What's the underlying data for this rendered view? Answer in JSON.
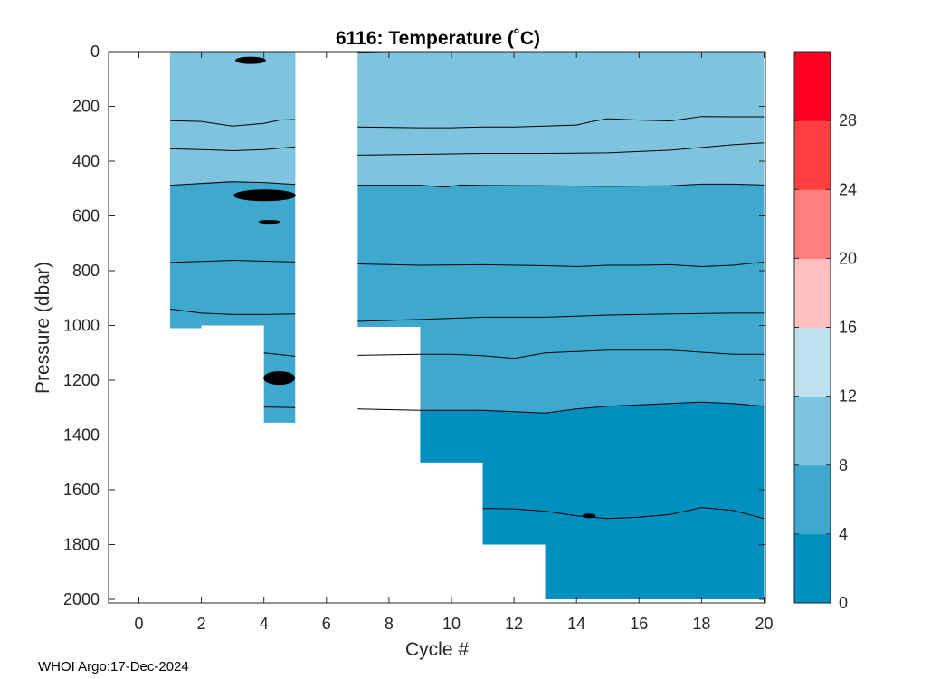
{
  "chart_data": {
    "type": "filled-contour",
    "title": "6116:  Temperature (˚C)",
    "xlabel": "Cycle #",
    "ylabel": "Pressure (dbar)",
    "xlim": [
      -1,
      20
    ],
    "ylim": [
      0,
      2000
    ],
    "y_reversed": true,
    "x_ticks": [
      0,
      2,
      4,
      6,
      8,
      10,
      12,
      14,
      16,
      18,
      20
    ],
    "y_ticks": [
      0,
      200,
      400,
      600,
      800,
      1000,
      1200,
      1400,
      1600,
      1800,
      2000
    ],
    "grid": false,
    "colorbar": {
      "levels": [
        0,
        4,
        8,
        12,
        16,
        20,
        24,
        28,
        32
      ],
      "colors": [
        "#008fbf",
        "#3fa8cf",
        "#7fc4df",
        "#bfe1ef",
        "#ffbfbf",
        "#ff7f7f",
        "#ff3f3f",
        "#ff0020"
      ],
      "tick_values": [
        0,
        4,
        8,
        12,
        16,
        20,
        24,
        28
      ]
    },
    "profiles": [
      {
        "cycle": 1,
        "max_pressure": 1010
      },
      {
        "cycle": 2,
        "max_pressure": 1000
      },
      {
        "cycle": 3,
        "max_pressure": 1000
      },
      {
        "cycle": 4,
        "max_pressure": 1355
      },
      {
        "cycle": 7,
        "max_pressure": 1005
      },
      {
        "cycle": 8,
        "max_pressure": 1005
      },
      {
        "cycle": 9,
        "max_pressure": 1500
      },
      {
        "cycle": 10,
        "max_pressure": 1500
      },
      {
        "cycle": 11,
        "max_pressure": 1800
      },
      {
        "cycle": 12,
        "max_pressure": 1800
      },
      {
        "cycle": 13,
        "max_pressure": 2000
      },
      {
        "cycle": 20,
        "max_pressure": 2000
      }
    ],
    "color_regions": [
      {
        "range": "8-12",
        "from_pressure": 0,
        "to_isotherm": 8
      },
      {
        "range": "4-8",
        "from_isotherm": 8,
        "to_isotherm": 4
      },
      {
        "range": "0-4",
        "from_isotherm": 4,
        "to_pressure": "profile bottom"
      }
    ],
    "isotherms": [
      {
        "name": "upper-1",
        "x": [
          1,
          2,
          3,
          4,
          4.5,
          5,
          7,
          9,
          10,
          11,
          12,
          13,
          14,
          14.5,
          15,
          16,
          17,
          17.5,
          18,
          19,
          20
        ],
        "y": [
          252,
          255,
          272,
          262,
          250,
          248,
          275,
          278,
          278,
          275,
          275,
          272,
          268,
          255,
          245,
          250,
          253,
          245,
          237,
          238,
          238
        ]
      },
      {
        "name": "upper-2",
        "x": [
          1,
          2,
          3,
          4,
          5,
          7,
          9,
          11,
          13,
          15,
          16,
          17,
          18,
          19,
          20
        ],
        "y": [
          355,
          358,
          362,
          358,
          348,
          378,
          375,
          372,
          372,
          370,
          365,
          360,
          350,
          340,
          333
        ]
      },
      {
        "name": "isotherm-8",
        "x": [
          1,
          3,
          4,
          5,
          7,
          9,
          9.8,
          10.3,
          11,
          13,
          15,
          17,
          18,
          19,
          20
        ],
        "y": [
          488,
          475,
          478,
          485,
          488,
          488,
          495,
          487,
          489,
          490,
          492,
          490,
          484,
          484,
          487
        ]
      },
      {
        "name": "mid-1",
        "x": [
          1,
          3,
          5,
          7,
          9,
          11,
          13,
          14,
          15,
          16,
          17,
          18,
          19,
          20
        ],
        "y": [
          770,
          762,
          768,
          775,
          780,
          778,
          782,
          785,
          780,
          780,
          778,
          785,
          780,
          768
        ]
      },
      {
        "name": "mid-2",
        "x": [
          1,
          2,
          3,
          4,
          5,
          7,
          9,
          11,
          13,
          15,
          17,
          19,
          20
        ],
        "y": [
          940,
          955,
          960,
          960,
          958,
          985,
          978,
          970,
          970,
          962,
          958,
          955,
          955
        ]
      },
      {
        "name": "mid-3",
        "x": [
          4,
          5,
          9,
          10,
          11,
          12,
          13,
          15,
          17,
          19,
          20
        ],
        "y": [
          1100,
          1112,
          1105,
          1105,
          1110,
          1120,
          1100,
          1090,
          1090,
          1105,
          1105
        ]
      },
      {
        "name": "isotherm-4",
        "x": [
          4,
          5,
          9,
          11,
          13,
          14,
          15,
          16,
          17,
          18,
          19,
          20
        ],
        "y": [
          1298,
          1300,
          1310,
          1310,
          1320,
          1305,
          1295,
          1290,
          1285,
          1280,
          1285,
          1295
        ]
      },
      {
        "name": "deep-1",
        "x": [
          11,
          12,
          13,
          14,
          15,
          16,
          17,
          18,
          19,
          20
        ],
        "y": [
          1668,
          1670,
          1678,
          1695,
          1705,
          1700,
          1690,
          1665,
          1675,
          1705
        ]
      },
      {
        "name": "surface-7",
        "x": [
          7,
          8
        ],
        "y": [
          2,
          0
        ]
      }
    ],
    "blobs": [
      {
        "x0": 3.1,
        "x1": 4.05,
        "p": 32,
        "h": 7
      },
      {
        "x0": 3.05,
        "x1": 5.0,
        "p": 525,
        "h": 12
      },
      {
        "x0": 3.85,
        "x1": 4.5,
        "p": 622,
        "h": 3
      },
      {
        "x0": 4.0,
        "x1": 4.98,
        "p": 1192,
        "h": 14
      },
      {
        "x0": 14.2,
        "x1": 14.6,
        "p": 1695,
        "h": 4
      }
    ],
    "footer": "WHOI Argo:17-Dec-2024"
  }
}
